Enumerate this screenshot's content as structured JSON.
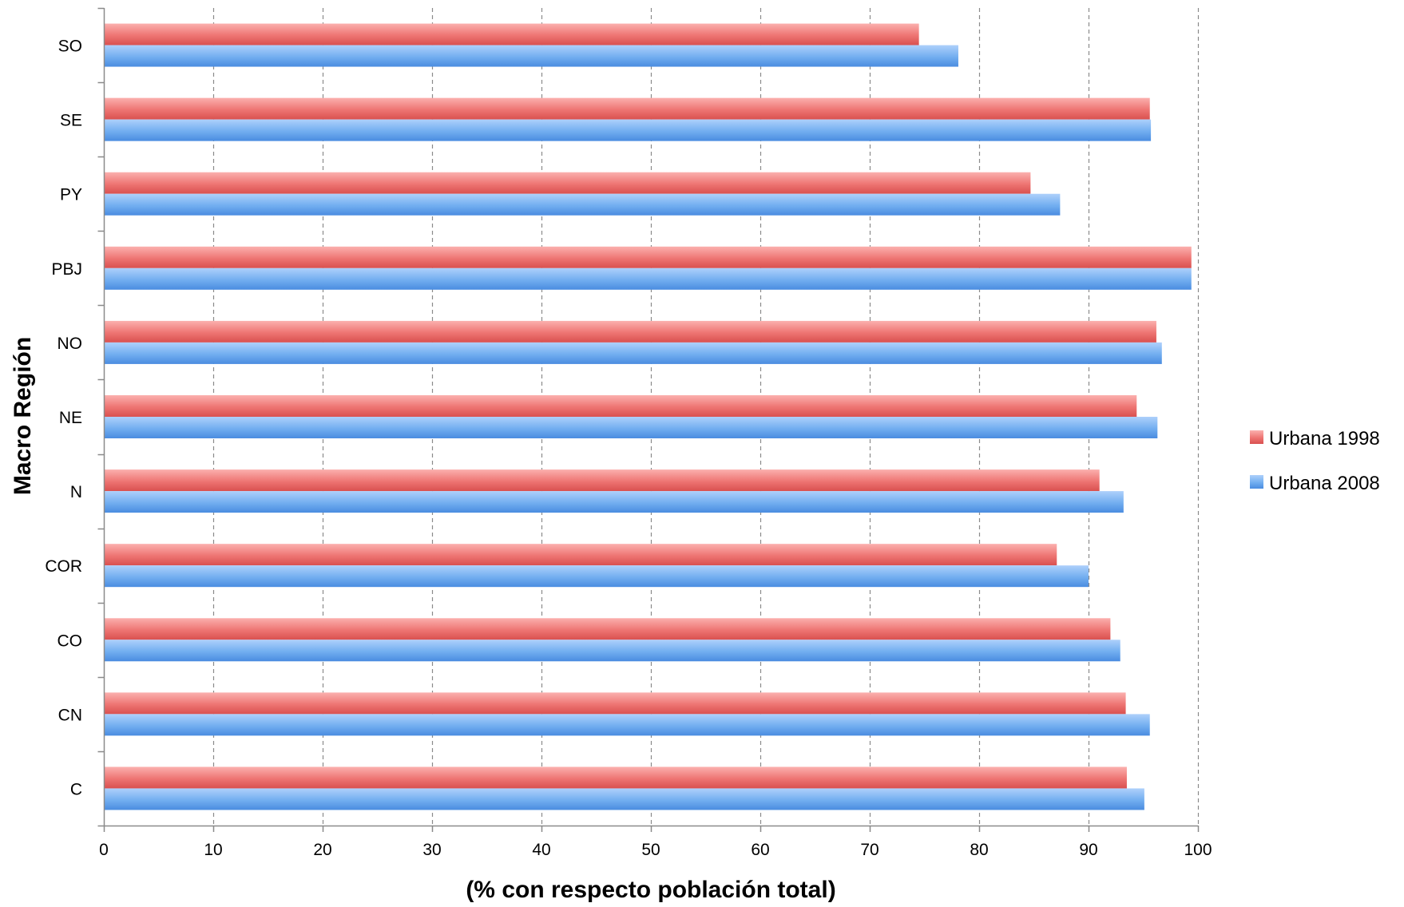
{
  "chart_data": {
    "type": "bar",
    "orientation": "horizontal",
    "categories": [
      "SO",
      "SE",
      "PY",
      "PBJ",
      "NO",
      "NE",
      "N",
      "COR",
      "CO",
      "CN",
      "C"
    ],
    "series": [
      {
        "name": "Urbana 1998",
        "color": "#e8605f",
        "values": [
          74.5,
          95.6,
          84.7,
          99.4,
          96.2,
          94.4,
          91.0,
          87.1,
          92.0,
          93.4,
          93.5
        ]
      },
      {
        "name": "Urbana 2008",
        "color": "#5d9ceb",
        "values": [
          78.1,
          95.7,
          87.4,
          99.4,
          96.7,
          96.3,
          93.2,
          90.0,
          92.9,
          95.6,
          95.1
        ]
      }
    ],
    "xlabel": "(% con respecto población total)",
    "ylabel": "Macro Región",
    "xlim": [
      0,
      100
    ],
    "xticks": [
      0,
      10,
      20,
      30,
      40,
      50,
      60,
      70,
      80,
      90,
      100
    ],
    "grid": "vertical dashed",
    "legend_position": "right"
  }
}
